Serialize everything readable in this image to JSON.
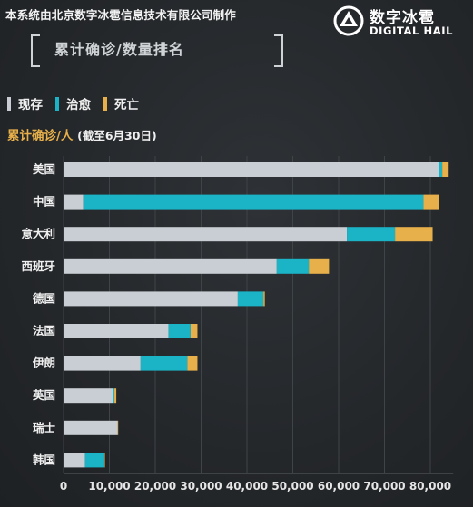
{
  "credit": "本系统由北京数字冰雹信息技术有限公司制作",
  "logo": {
    "cn": "数字冰雹",
    "en": "DIGITAL HAIL"
  },
  "title": "累计确诊/数量排名",
  "legend": [
    {
      "label": "现存",
      "color": "#c8ced3"
    },
    {
      "label": "治愈",
      "color": "#1bb3c6"
    },
    {
      "label": "死亡",
      "color": "#e8b04a"
    }
  ],
  "unit_label": "累计确诊/人",
  "date_note": "(截至6月30日)",
  "chart_data": {
    "type": "bar",
    "orientation": "horizontal",
    "stacked": true,
    "categories": [
      "美国",
      "中国",
      "意大利",
      "西班牙",
      "德国",
      "法国",
      "伊朗",
      "英国",
      "瑞士",
      "韩国"
    ],
    "series": [
      {
        "name": "现存",
        "color": "#c8ced3",
        "values": [
          81800,
          4300,
          61800,
          46500,
          38000,
          22900,
          16800,
          10800,
          11800,
          4700
        ]
      },
      {
        "name": "治愈",
        "color": "#1bb3c6",
        "values": [
          800,
          74200,
          10500,
          7000,
          5600,
          4800,
          10200,
          300,
          0,
          4200
        ]
      },
      {
        "name": "死亡",
        "color": "#e8b04a",
        "values": [
          1400,
          3300,
          8200,
          4400,
          300,
          1500,
          2200,
          400,
          100,
          100
        ]
      }
    ],
    "xlim": [
      0,
      85000
    ],
    "xticks": [
      0,
      10000,
      20000,
      30000,
      40000,
      50000,
      60000,
      70000,
      80000
    ],
    "xtick_labels": [
      "0",
      "10,000",
      "20,000",
      "30,000",
      "40,000",
      "50,000",
      "60,000",
      "70,000",
      "80,000"
    ],
    "grid": true
  }
}
